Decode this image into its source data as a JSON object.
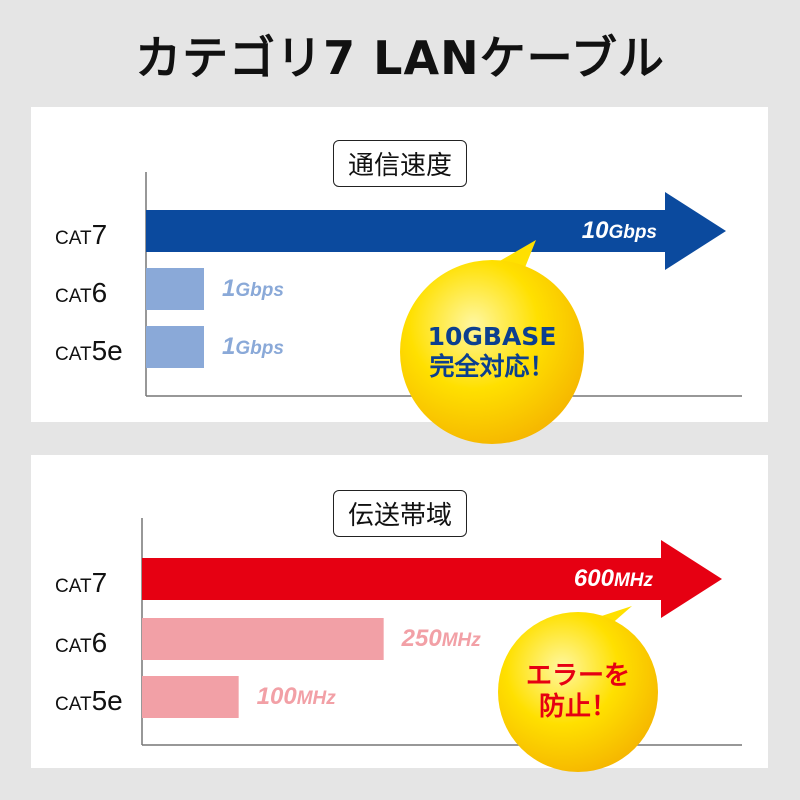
{
  "title": "カテゴリ7 LANケーブル",
  "chart_data": [
    {
      "type": "bar",
      "orientation": "horizontal",
      "title": "通信速度",
      "categories": [
        "CAT7",
        "CAT6",
        "CAT5e"
      ],
      "values": [
        10,
        1,
        1
      ],
      "unit": "Gbps",
      "value_labels": [
        {
          "num": "10",
          "unit": "Gbps"
        },
        {
          "num": "1",
          "unit": "Gbps"
        },
        {
          "num": "1",
          "unit": "Gbps"
        }
      ],
      "colors": [
        "#0b4a9e",
        "#8aa9d8",
        "#8aa9d8"
      ],
      "callout": {
        "line1": "10GBASE",
        "line2": "完全対応！",
        "color": "#0b3f8f"
      }
    },
    {
      "type": "bar",
      "orientation": "horizontal",
      "title": "伝送帯域",
      "categories": [
        "CAT7",
        "CAT6",
        "CAT5e"
      ],
      "values": [
        600,
        250,
        100
      ],
      "unit": "MHz",
      "value_labels": [
        {
          "num": "600",
          "unit": "MHz"
        },
        {
          "num": "250",
          "unit": "MHz"
        },
        {
          "num": "100",
          "unit": "MHz"
        }
      ],
      "colors": [
        "#e60012",
        "#f2a0a6",
        "#f2a0a6"
      ],
      "callout": {
        "line1": "エラーを",
        "line2": "防止！",
        "color": "#e60012"
      }
    }
  ],
  "cat_labels": [
    {
      "pre": "CAT",
      "num": "7"
    },
    {
      "pre": "CAT",
      "num": "6"
    },
    {
      "pre": "CAT",
      "num": "5e"
    }
  ]
}
